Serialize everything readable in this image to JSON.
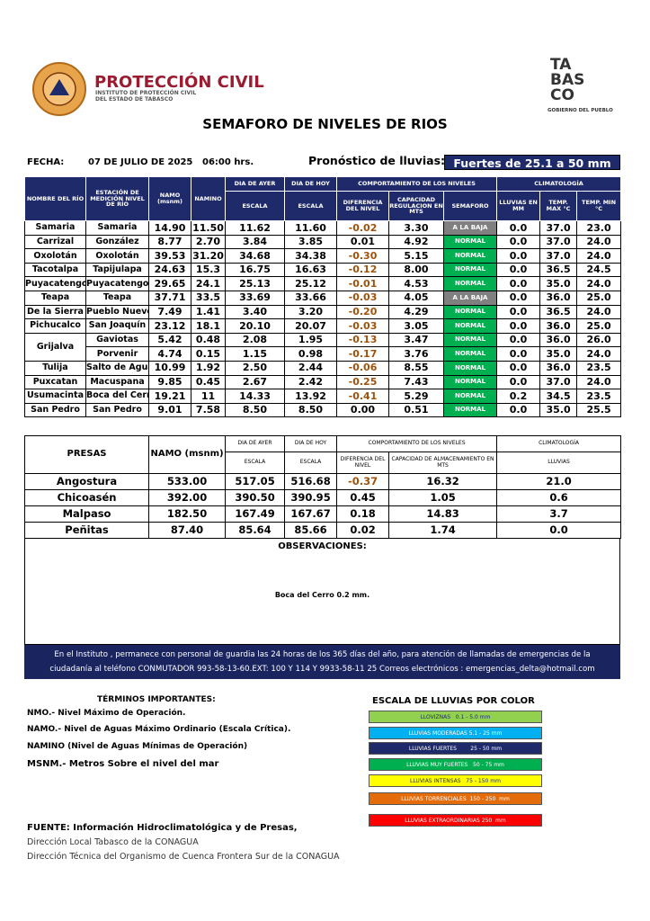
{
  "header": {
    "org": "PROTECCIÓN CIVIL",
    "subtitle_1": "INSTITUTO DE PROTECCIÓN CIVIL",
    "subtitle_2": "DEL ESTADO DE TABASCO",
    "logo_right": [
      "TA",
      "BAS",
      "CO"
    ],
    "logo_right_caption": "GOBIERNO DEL PUEBLO"
  },
  "title": "SEMAFORO DE NIVELES DE RIOS",
  "info": {
    "fecha_label": "FECHA:",
    "fecha": "07 DE JULIO DE 2025",
    "hora": "06:00 hrs.",
    "pronostico_label": "Pronóstico de lluvias:",
    "pronostico": "Fuertes de 25.1 a 50 mm"
  },
  "rivers": {
    "headers": {
      "nombre": "NOMBRE DEL RÍO",
      "estacion": "ESTACIÓN DE MEDICIÓN NIVEL DE RÍO",
      "namo": "NAMO (msnm)",
      "namino": "NAMINO",
      "dia_ayer": "DIA DE AYER",
      "dia_hoy": "DIA DE HOY",
      "comportamiento": "COMPORTAMIENTO DE LOS NIVELES",
      "climatologia": "CLIMATOLOGÍA",
      "escala_ayer": "ESCALA",
      "escala_hoy": "ESCALA",
      "diferencia": "DIFERENCIA DEL NIVEL",
      "capacidad": "CAPACIDAD REGULACION EN MTS",
      "semaforo": "SEMAFORO",
      "lluvias": "LLUVIAS EN MM",
      "temp_max": "TEMP. MAX °C",
      "temp_min": "TEMP.  MIN °C"
    },
    "rows": [
      {
        "river": "Samaria",
        "station": "Samaria",
        "namo": "14.90",
        "namino": "11.50",
        "ayer": "11.62",
        "hoy": "11.60",
        "diferencia": "-0.02",
        "capacidad": "3.30",
        "semaforo": "A LA BAJA",
        "lluvias": "0.0",
        "temp_max": "37.0",
        "temp_min": "23.0"
      },
      {
        "river": "Carrizal",
        "station": "González",
        "namo": "8.77",
        "namino": "2.70",
        "ayer": "3.84",
        "hoy": "3.85",
        "diferencia": "0.01",
        "capacidad": "4.92",
        "semaforo": "NORMAL",
        "lluvias": "0.0",
        "temp_max": "37.0",
        "temp_min": "24.0"
      },
      {
        "river": "Oxolotán",
        "station": "Oxolotán",
        "namo": "39.53",
        "namino": "31.20",
        "ayer": "34.68",
        "hoy": "34.38",
        "diferencia": "-0.30",
        "capacidad": "5.15",
        "semaforo": "NORMAL",
        "lluvias": "0.0",
        "temp_max": "37.0",
        "temp_min": "24.0"
      },
      {
        "river": "Tacotalpa",
        "station": "Tapijulapa",
        "namo": "24.63",
        "namino": "15.3",
        "ayer": "16.75",
        "hoy": "16.63",
        "diferencia": "-0.12",
        "capacidad": "8.00",
        "semaforo": "NORMAL",
        "lluvias": "0.0",
        "temp_max": "36.5",
        "temp_min": "24.5"
      },
      {
        "river": "Puyacatengo",
        "station": "Puyacatengo",
        "namo": "29.65",
        "namino": "24.1",
        "ayer": "25.13",
        "hoy": "25.12",
        "diferencia": "-0.01",
        "capacidad": "4.53",
        "semaforo": "NORMAL",
        "lluvias": "0.0",
        "temp_max": "35.0",
        "temp_min": "24.0"
      },
      {
        "river": "Teapa",
        "station": "Teapa",
        "namo": "37.71",
        "namino": "33.5",
        "ayer": "33.69",
        "hoy": "33.66",
        "diferencia": "-0.03",
        "capacidad": "4.05",
        "semaforo": "A LA BAJA",
        "lluvias": "0.0",
        "temp_max": "36.0",
        "temp_min": "25.0"
      },
      {
        "river": "De la Sierra",
        "station": "Pueblo Nuevo",
        "namo": "7.49",
        "namino": "1.41",
        "ayer": "3.40",
        "hoy": "3.20",
        "diferencia": "-0.20",
        "capacidad": "4.29",
        "semaforo": "NORMAL",
        "lluvias": "0.0",
        "temp_max": "36.5",
        "temp_min": "24.0"
      },
      {
        "river": "Pichucalco",
        "station": "San Joaquín",
        "namo": "23.12",
        "namino": "18.1",
        "ayer": "20.10",
        "hoy": "20.07",
        "diferencia": "-0.03",
        "capacidad": "3.05",
        "semaforo": "NORMAL",
        "lluvias": "0.0",
        "temp_max": "36.0",
        "temp_min": "25.0"
      },
      {
        "river": "Grijalva",
        "station": "Gaviotas",
        "namo": "5.42",
        "namino": "0.48",
        "ayer": "2.08",
        "hoy": "1.95",
        "diferencia": "-0.13",
        "capacidad": "3.47",
        "semaforo": "NORMAL",
        "lluvias": "0.0",
        "temp_max": "36.0",
        "temp_min": "26.0"
      },
      {
        "river": null,
        "station": "Porvenir",
        "namo": "4.74",
        "namino": "0.15",
        "ayer": "1.15",
        "hoy": "0.98",
        "diferencia": "-0.17",
        "capacidad": "3.76",
        "semaforo": "NORMAL",
        "lluvias": "0.0",
        "temp_max": "35.0",
        "temp_min": "24.0"
      },
      {
        "river": "Tulija",
        "station": "Salto de Agua",
        "namo": "10.99",
        "namino": "1.92",
        "ayer": "2.50",
        "hoy": "2.44",
        "diferencia": "-0.06",
        "capacidad": "8.55",
        "semaforo": "NORMAL",
        "lluvias": "0.0",
        "temp_max": "36.0",
        "temp_min": "23.5"
      },
      {
        "river": "Puxcatan",
        "station": "Macuspana",
        "namo": "9.85",
        "namino": "0.45",
        "ayer": "2.67",
        "hoy": "2.42",
        "diferencia": "-0.25",
        "capacidad": "7.43",
        "semaforo": "NORMAL",
        "lluvias": "0.0",
        "temp_max": "37.0",
        "temp_min": "24.0"
      },
      {
        "river": "Usumacinta",
        "station": "Boca del Cerro",
        "namo": "19.21",
        "namino": "11",
        "ayer": "14.33",
        "hoy": "13.92",
        "diferencia": "-0.41",
        "capacidad": "5.29",
        "semaforo": "NORMAL",
        "lluvias": "0.2",
        "temp_max": "34.5",
        "temp_min": "23.5"
      },
      {
        "river": "San Pedro",
        "station": "San Pedro",
        "namo": "9.01",
        "namino": "7.58",
        "ayer": "8.50",
        "hoy": "8.50",
        "diferencia": "0.00",
        "capacidad": "0.51",
        "semaforo": "NORMAL",
        "lluvias": "0.0",
        "temp_max": "35.0",
        "temp_min": "25.5"
      }
    ]
  },
  "dams": {
    "headers": {
      "presas": "PRESAS",
      "namo": "NAMO (msnm)",
      "dia_ayer": "DIA DE AYER",
      "dia_hoy": "DIA DE HOY",
      "comportamiento": "COMPORTAMIENTO DE LOS NIVELES",
      "climatologia": "CLIMATOLOGÍA",
      "escala_ayer": "ESCALA",
      "escala_hoy": "ESCALA",
      "diferencia": "DIFERENCIA DEL NIVEL",
      "capacidad": "CAPACIDAD DE ALMACENAMIENTO EN MTS",
      "lluvias": "LLUVIAS"
    },
    "rows": [
      {
        "name": "Angostura",
        "namo": "533.00",
        "ayer": "517.05",
        "hoy": "516.68",
        "diferencia": "-0.37",
        "capacidad": "16.32",
        "lluvias": "21.0"
      },
      {
        "name": "Chicoasén",
        "namo": "392.00",
        "ayer": "390.50",
        "hoy": "390.95",
        "diferencia": "0.45",
        "capacidad": "1.05",
        "lluvias": "0.6"
      },
      {
        "name": "Malpaso",
        "namo": "182.50",
        "ayer": "167.49",
        "hoy": "167.67",
        "diferencia": "0.18",
        "capacidad": "14.83",
        "lluvias": "3.7"
      },
      {
        "name": "Peñitas",
        "namo": "87.40",
        "ayer": "85.64",
        "hoy": "85.66",
        "diferencia": "0.02",
        "capacidad": "1.74",
        "lluvias": "0.0"
      }
    ]
  },
  "observations": {
    "label": "OBSERVACIONES:",
    "text": "Boca del Cerro 0.2 mm."
  },
  "notice": [
    "En el Instituto , permanece con personal de guardia las 24 horas de los 365 días del año, para atención de llamadas de emergencias de la",
    "ciudadanía al teléfono  CONMUTADOR  993-58-13-60.EXT: 100 Y 114  Y 9933-58-11 25   Correos electrónicos : emergencias_delta@hotmail.com"
  ],
  "terms": {
    "title": "TÉRMINOS IMPORTANTES:",
    "items": [
      "NMO.- Nivel Máximo de Operación.",
      "NAMO.- Nivel de Aguas Máximo Ordinario (Escala Crítica).",
      "NAMINO (Nivel de Aguas Mínimas de Operación)",
      "MSNM.- Metros Sobre el nivel del mar"
    ]
  },
  "rain_scale": {
    "title": "ESCALA DE LLUVIAS POR COLOR",
    "items": [
      {
        "label": "LLOVIZNAS   0.1 - 5.0 mm",
        "color": "#92d050"
      },
      {
        "label": "LLUVIAS MODERADAS 5.1 - 25 mm",
        "color": "#00b0f0"
      },
      {
        "label": "LLUVIAS FUERTES        25 - 50 mm",
        "color": "#1f2a6b"
      },
      {
        "label": "LLUVIAS MUY FUERTES   50 - 75 mm",
        "color": "#00b050"
      },
      {
        "label": "LLUVIAS INTENSAS   75 - 150 mm",
        "color": "#ffff00"
      },
      {
        "label": "LLUVIAS TORRENCIALES  150 - 250  mm",
        "color": "#e46c0a"
      },
      {
        "label": "LLUVIAS EXTRAORDINARIAS 250  mm",
        "color": "#ff0000"
      }
    ]
  },
  "source": {
    "title": "FUENTE: Información Hidroclimatológica y de Presas,",
    "lines": [
      "Dirección Local Tabasco de la CONAGUA",
      "Dirección Técnica del Organismo de Cuenca Frontera Sur de la CONAGUA"
    ]
  }
}
